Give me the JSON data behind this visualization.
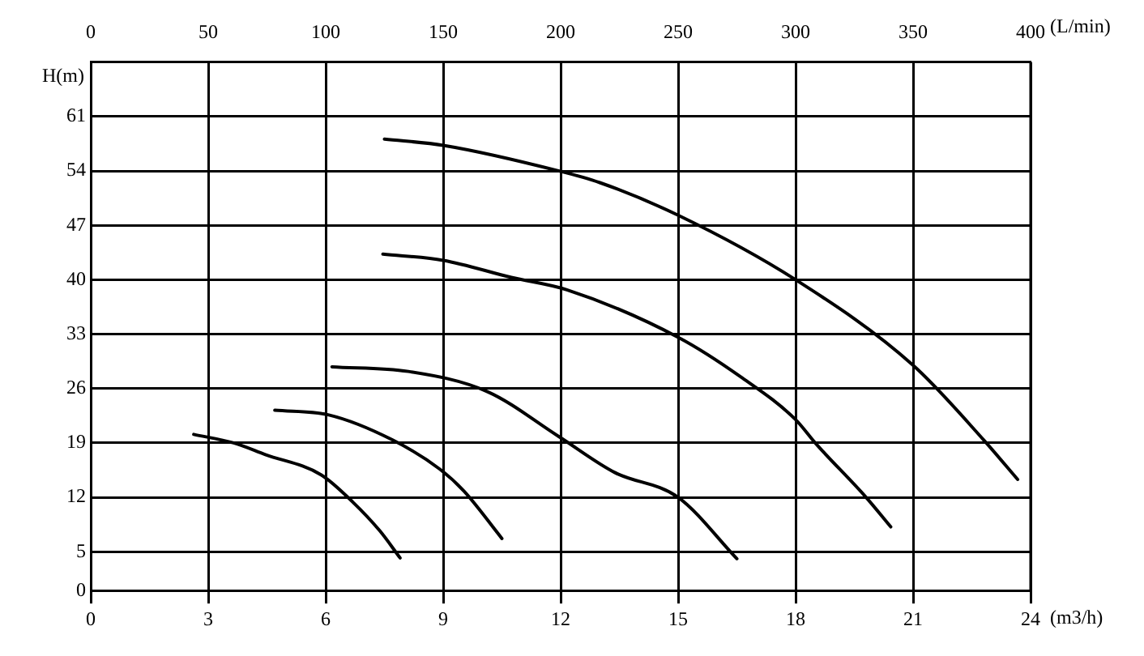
{
  "chart_data": {
    "type": "line",
    "xlabel": "(m3/h)",
    "ylabel": "H(m)",
    "x2label": "(L/min)",
    "xlim": [
      0,
      24
    ],
    "xticks": [
      0,
      3,
      6,
      9,
      12,
      15,
      18,
      21,
      24
    ],
    "x2lim": [
      0,
      400
    ],
    "x2ticks": [
      0,
      50,
      100,
      150,
      200,
      250,
      300,
      350,
      400
    ],
    "ylim": [
      0,
      68
    ],
    "yticks": [
      0,
      5,
      12,
      19,
      26,
      33,
      40,
      47,
      54,
      61
    ],
    "grid": true,
    "legend": false,
    "marker": "none",
    "line_style": "solid",
    "series": [
      {
        "color": "#000000",
        "x": [
          2.63,
          3.65,
          4.46,
          5.88,
          6.69,
          7.38,
          7.9
        ],
        "values": [
          20.1,
          19,
          17.5,
          14.9,
          11.4,
          7.7,
          4.2
        ]
      },
      {
        "color": "#000000",
        "x": [
          4.7,
          6.08,
          7.7,
          8.92,
          9.53,
          10.5
        ],
        "values": [
          23.2,
          22.6,
          19.4,
          15.6,
          12.8,
          6.7
        ]
      },
      {
        "color": "#000000",
        "x": [
          6.16,
          8.11,
          10.13,
          11.96,
          13.38,
          15.0,
          16.5
        ],
        "values": [
          28.8,
          28.2,
          25.6,
          19.8,
          15.2,
          12,
          4.1
        ]
      },
      {
        "color": "#000000",
        "x": [
          7.46,
          9.0,
          10.74,
          12.16,
          15.0,
          16.6,
          18.0,
          18.5,
          19.8,
          20.43
        ],
        "values": [
          43.3,
          42.5,
          40.3,
          38.7,
          32.6,
          27.5,
          22,
          19,
          12,
          8.2
        ]
      },
      {
        "color": "#000000",
        "x": [
          7.5,
          9.0,
          11.96,
          13.0,
          15.0,
          18.0,
          21.0,
          22.8,
          23.67
        ],
        "values": [
          58.1,
          57.3,
          54,
          52.5,
          48.3,
          40,
          29,
          19.4,
          14.3
        ]
      }
    ]
  }
}
